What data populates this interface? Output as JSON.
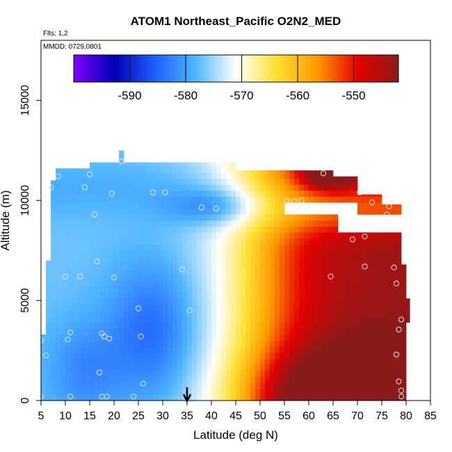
{
  "chart_data": {
    "type": "heatmap",
    "title": "ATOM1 Northeast_Pacific O2N2_MED",
    "annotations": {
      "flights": "Flts: 1,2",
      "dates": "MMDD: 0729,0801"
    },
    "xlabel": "Latitude (deg N)",
    "ylabel": "Altitude (m)",
    "xlim": [
      5,
      85
    ],
    "ylim": [
      0,
      18000
    ],
    "x_ticks": [
      5,
      10,
      15,
      20,
      25,
      30,
      35,
      40,
      45,
      50,
      55,
      60,
      65,
      70,
      75,
      80,
      85
    ],
    "x_tick_labels": [
      "5",
      "10",
      "15",
      "20",
      "25",
      "30",
      "35",
      "40",
      "45",
      "50",
      "55",
      "60",
      "65",
      "70",
      "75",
      "80",
      "85"
    ],
    "y_ticks": [
      0,
      5000,
      10000,
      15000
    ],
    "y_tick_labels": [
      "0",
      "5000",
      "10000",
      "15000"
    ],
    "colorbar": {
      "range": [
        -600,
        -542
      ],
      "ticks": [
        -590,
        -580,
        -570,
        -560,
        -550
      ],
      "tick_labels": [
        "-590",
        "-580",
        "-570",
        "-560",
        "-550"
      ],
      "colors": [
        "#7f00ff",
        "#0000b3",
        "#1e5fff",
        "#4fb6ff",
        "#ffffff",
        "#ffe030",
        "#ff9900",
        "#e60000",
        "#8b1a1a"
      ]
    },
    "grid": false,
    "marker": {
      "x": 35,
      "label": "arrow"
    },
    "samples": [
      {
        "x": 5,
        "y": 3000
      },
      {
        "x": 6,
        "y": 2250
      },
      {
        "x": 5,
        "y": 200
      },
      {
        "x": 7,
        "y": 10650
      },
      {
        "x": 8.5,
        "y": 11200
      },
      {
        "x": 10,
        "y": 6200
      },
      {
        "x": 10.5,
        "y": 3050
      },
      {
        "x": 11,
        "y": 3400
      },
      {
        "x": 11,
        "y": 200
      },
      {
        "x": 13,
        "y": 6200
      },
      {
        "x": 14,
        "y": 10650
      },
      {
        "x": 15,
        "y": 11300
      },
      {
        "x": 16,
        "y": 9300
      },
      {
        "x": 16.5,
        "y": 6950
      },
      {
        "x": 17,
        "y": 1400
      },
      {
        "x": 17.5,
        "y": 3350
      },
      {
        "x": 18,
        "y": 3200
      },
      {
        "x": 17.5,
        "y": 200
      },
      {
        "x": 18.5,
        "y": 200
      },
      {
        "x": 19,
        "y": 3100
      },
      {
        "x": 19.5,
        "y": 10350
      },
      {
        "x": 20,
        "y": 6150
      },
      {
        "x": 21.5,
        "y": 11950
      },
      {
        "x": 24,
        "y": 200
      },
      {
        "x": 25,
        "y": 4600
      },
      {
        "x": 25.5,
        "y": 3200
      },
      {
        "x": 26,
        "y": 850
      },
      {
        "x": 28,
        "y": 10400
      },
      {
        "x": 30.5,
        "y": 10400
      },
      {
        "x": 34,
        "y": 6550
      },
      {
        "x": 35.5,
        "y": 4500
      },
      {
        "x": 38,
        "y": 9650
      },
      {
        "x": 41,
        "y": 9600
      },
      {
        "x": 50.5,
        "y": 10000
      },
      {
        "x": 55.5,
        "y": 9950
      },
      {
        "x": 57,
        "y": 9950
      },
      {
        "x": 58.5,
        "y": 10000
      },
      {
        "x": 63,
        "y": 11350
      },
      {
        "x": 64.5,
        "y": 6200
      },
      {
        "x": 69,
        "y": 8050
      },
      {
        "x": 70.5,
        "y": 10400
      },
      {
        "x": 71.5,
        "y": 6700
      },
      {
        "x": 71.5,
        "y": 8200
      },
      {
        "x": 73,
        "y": 9900
      },
      {
        "x": 76.5,
        "y": 9700
      },
      {
        "x": 76,
        "y": 9300
      },
      {
        "x": 77.5,
        "y": 6650
      },
      {
        "x": 78,
        "y": 5850
      },
      {
        "x": 78,
        "y": 2300
      },
      {
        "x": 78.5,
        "y": 3550
      },
      {
        "x": 79,
        "y": 4050
      },
      {
        "x": 78.5,
        "y": 950
      },
      {
        "x": 79,
        "y": 500
      },
      {
        "x": 79,
        "y": 200
      }
    ]
  }
}
